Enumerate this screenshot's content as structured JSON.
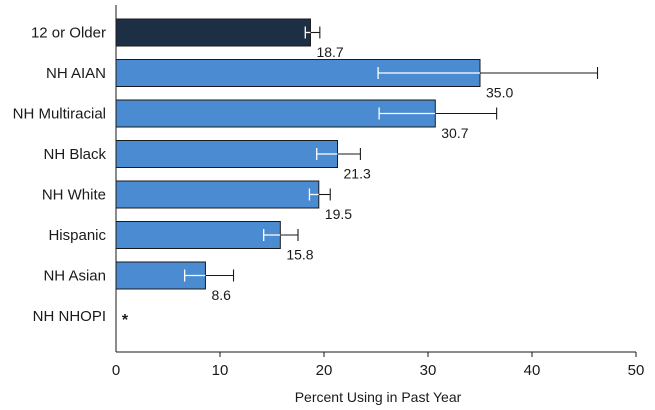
{
  "chart_data": {
    "type": "bar",
    "orientation": "horizontal",
    "xlabel": "Percent Using in Past Year",
    "xlim": [
      0,
      50
    ],
    "xticks": [
      "0",
      "10",
      "20",
      "30",
      "40",
      "50"
    ],
    "categories": [
      "12 or Older",
      "NH AIAN",
      "NH Multiracial",
      "NH Black",
      "NH White",
      "Hispanic",
      "NH Asian",
      "NH NHOPI"
    ],
    "values": [
      18.7,
      35.0,
      30.7,
      21.3,
      19.5,
      15.8,
      8.6,
      null
    ],
    "value_labels": [
      "18.7",
      "35.0",
      "30.7",
      "21.3",
      "19.5",
      "15.8",
      "8.6",
      "*"
    ],
    "ci_lower": [
      18.2,
      25.2,
      25.3,
      19.3,
      18.6,
      14.2,
      6.6,
      null
    ],
    "ci_upper": [
      19.6,
      46.3,
      36.6,
      23.5,
      20.6,
      17.5,
      11.3,
      null
    ],
    "grid": false,
    "colors": {
      "highlight_bar": "#1c2f45",
      "bar": "#4a8bd2",
      "bar_stroke": "#1a1a1a",
      "error_bar_inside": "#ffffff",
      "error_bar_outside": "#1a1a1a"
    }
  }
}
